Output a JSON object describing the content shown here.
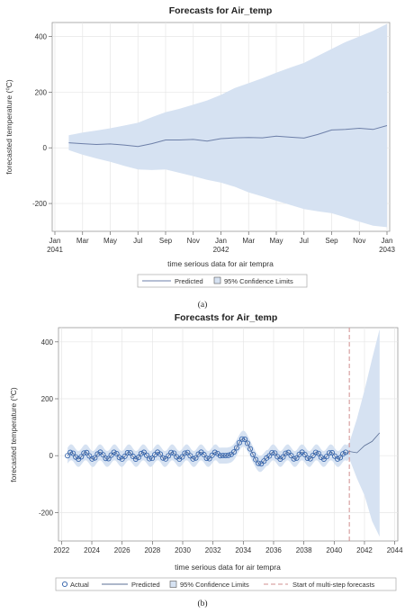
{
  "chart_data": [
    {
      "type": "area",
      "title": "Forecasts for Air_temp",
      "xlabel": "time serious data for air tempra",
      "ylabel": "forecasted temperature (⁰C)",
      "ylim": [
        -300,
        450
      ],
      "yticks": [
        -200,
        0,
        200,
        400
      ],
      "xlim": [
        0,
        24
      ],
      "xticks": [
        {
          "pos": 0,
          "label": "Jan",
          "sub": "2041"
        },
        {
          "pos": 2,
          "label": "Mar",
          "sub": ""
        },
        {
          "pos": 4,
          "label": "May",
          "sub": ""
        },
        {
          "pos": 6,
          "label": "Jul",
          "sub": ""
        },
        {
          "pos": 8,
          "label": "Sep",
          "sub": ""
        },
        {
          "pos": 10,
          "label": "Nov",
          "sub": ""
        },
        {
          "pos": 12,
          "label": "Jan",
          "sub": "2042"
        },
        {
          "pos": 14,
          "label": "Mar",
          "sub": ""
        },
        {
          "pos": 16,
          "label": "May",
          "sub": ""
        },
        {
          "pos": 18,
          "label": "Jul",
          "sub": ""
        },
        {
          "pos": 20,
          "label": "Sep",
          "sub": ""
        },
        {
          "pos": 22,
          "label": "Nov",
          "sub": ""
        },
        {
          "pos": 24,
          "label": "Jan",
          "sub": "2043"
        }
      ],
      "x": [
        1,
        2,
        3,
        4,
        5,
        6,
        7,
        8,
        9,
        10,
        11,
        12,
        13,
        14,
        15,
        16,
        17,
        18,
        19,
        20,
        21,
        22,
        23,
        24
      ],
      "series": [
        {
          "name": "Predicted",
          "values": [
            18,
            15,
            12,
            14,
            10,
            5,
            15,
            28,
            28,
            30,
            24,
            33,
            36,
            37,
            36,
            42,
            38,
            35,
            48,
            64,
            66,
            70,
            66,
            80
          ]
        },
        {
          "name": "95% Confidence Limits",
          "lower": [
            -8,
            -25,
            -38,
            -50,
            -65,
            -78,
            -80,
            -78,
            -90,
            -102,
            -115,
            -125,
            -140,
            -160,
            -175,
            -190,
            -205,
            -220,
            -228,
            -235,
            -250,
            -265,
            -280,
            -285
          ],
          "upper": [
            45,
            55,
            62,
            70,
            80,
            90,
            110,
            128,
            140,
            155,
            170,
            190,
            215,
            232,
            250,
            270,
            288,
            305,
            330,
            355,
            380,
            400,
            420,
            445
          ]
        }
      ],
      "legend": [
        "Predicted",
        "95% Confidence Limits"
      ],
      "legend_position": "bottom",
      "grid": true,
      "colors": {
        "line": "#6d7fa8",
        "band": "#d6e2f2"
      }
    },
    {
      "type": "line",
      "title": "Forecasts for Air_temp",
      "xlabel": "time serious data for air tempra",
      "ylabel": "forecasted temperature (⁰C)",
      "ylim": [
        -300,
        450
      ],
      "yticks": [
        -200,
        0,
        200,
        400
      ],
      "xlim": [
        2021.8,
        2044.2
      ],
      "xticks": [
        2022,
        2024,
        2026,
        2028,
        2030,
        2032,
        2034,
        2036,
        2038,
        2040,
        2042,
        2044
      ],
      "forecast_start": 2041.0,
      "series": [
        {
          "name": "Actual",
          "style": "markers",
          "x_start": 2022.4,
          "x_end": 2040.9,
          "approx_amplitude": 12,
          "anomaly_center": 2034.0,
          "anomaly_peak": 60,
          "anomaly_trough": -30
        },
        {
          "name": "Predicted",
          "style": "line"
        },
        {
          "name": "95% Confidence Limits",
          "style": "band"
        },
        {
          "name": "Start of multi-step forecasts",
          "style": "dashed-refline"
        }
      ],
      "forecast": {
        "x": [
          2041.0,
          2041.5,
          2042.0,
          2042.5,
          2043.0
        ],
        "predicted": [
          15,
          10,
          35,
          50,
          80
        ],
        "lower": [
          -10,
          -80,
          -140,
          -230,
          -285
        ],
        "upper": [
          45,
          130,
          230,
          340,
          445
        ]
      },
      "legend": [
        "Actual",
        "Predicted",
        "95% Confidence Limits",
        "Start of multi-step forecasts"
      ],
      "legend_position": "bottom",
      "grid": true,
      "colors": {
        "marker": "#2f5fa8",
        "line": "#5b6f96",
        "band": "#d6e2f2",
        "refline": "#d08f8f"
      }
    }
  ],
  "captions": [
    "(a)",
    "(b)"
  ]
}
